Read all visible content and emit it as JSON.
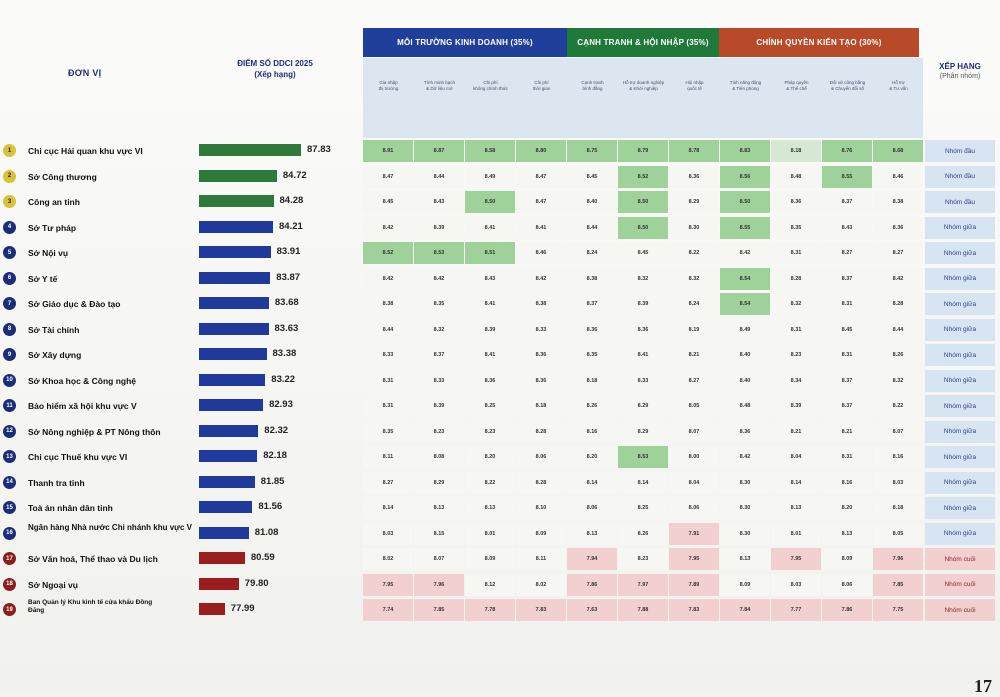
{
  "header": {
    "unit_label": "ĐƠN VỊ",
    "score_label": "ĐIỂM SỐ DDCI 2025",
    "score_sublabel": "(Xếp hạng)",
    "rank_label": "XẾP HẠNG",
    "rank_sublabel": "(Phân nhóm)",
    "groups": [
      {
        "label": "MÔI TRƯỜNG KINH DOANH (35%)",
        "color": "#1f3f9a"
      },
      {
        "label": "CẠNH TRANH & HỘI NHẬP (35%)",
        "color": "#1f7a3a"
      },
      {
        "label": "CHÍNH QUYỀN KIẾN TẠO (30%)",
        "color": "#b84a2a"
      }
    ],
    "subcols": [
      [
        "Gia nhập",
        "thị trường"
      ],
      [
        "Tính minh bạch",
        "& Dữ liệu mở"
      ],
      [
        "Chi phí",
        "không chính thức"
      ],
      [
        "Chi phí",
        "thời gian"
      ],
      [
        "Cạnh tranh",
        "bình đẳng"
      ],
      [
        "Hỗ trợ doanh nghiệp",
        "& Khởi nghiệp"
      ],
      [
        "Hội nhập",
        "quốc tế"
      ],
      [
        "Tính năng động",
        "& Tiên phong"
      ],
      [
        "Pháp quyền",
        "& Thể chế"
      ],
      [
        "Đối xử công bằng",
        "& Chuyển đổi số"
      ],
      [
        "Hỗ trợ",
        "& Tư vấn"
      ]
    ]
  },
  "colors": {
    "good": "#9ed29a",
    "mid": "#d6e8d3",
    "low": "#f2d0d0",
    "bar_green": "#2f7a3a",
    "bar_blue": "#1f3a9a",
    "bar_red": "#9a1e1e",
    "rank_bg": "#d7e4f2",
    "rank_low": "#f2d0d0"
  },
  "rows": [
    {
      "rank": "1",
      "name": "Chi cục Hải quan khu vực VI",
      "score": "87.83",
      "cells": [
        "8.91",
        "8.87",
        "8.58",
        "8.80",
        "8.75",
        "8.79",
        "8.78",
        "8.83",
        "8.18",
        "8.76",
        "8.68"
      ],
      "group": "Nhóm đầu"
    },
    {
      "rank": "2",
      "name": "Sở Công thương",
      "score": "84.72",
      "cells": [
        "8.47",
        "8.44",
        "8.49",
        "8.47",
        "8.45",
        "8.52",
        "8.36",
        "8.56",
        "8.48",
        "8.55",
        "8.46"
      ],
      "group": "Nhóm đầu"
    },
    {
      "rank": "3",
      "name": "Công an tỉnh",
      "score": "84.28",
      "cells": [
        "8.45",
        "8.43",
        "8.50",
        "8.47",
        "8.40",
        "8.50",
        "8.29",
        "8.50",
        "8.36",
        "8.37",
        "8.38"
      ],
      "group": "Nhóm đầu"
    },
    {
      "rank": "4",
      "name": "Sở Tư pháp",
      "score": "84.21",
      "cells": [
        "8.42",
        "8.39",
        "8.41",
        "8.41",
        "8.44",
        "8.50",
        "8.30",
        "8.55",
        "8.35",
        "8.43",
        "8.36"
      ],
      "group": "Nhóm giữa"
    },
    {
      "rank": "5",
      "name": "Sở Nội vụ",
      "score": "83.91",
      "cells": [
        "8.52",
        "8.53",
        "8.51",
        "8.46",
        "8.24",
        "8.45",
        "8.22",
        "8.42",
        "8.31",
        "8.27",
        "8.27"
      ],
      "group": "Nhóm giữa"
    },
    {
      "rank": "6",
      "name": "Sở Y tế",
      "score": "83.87",
      "cells": [
        "8.42",
        "8.42",
        "8.43",
        "8.42",
        "8.38",
        "8.32",
        "8.32",
        "8.54",
        "8.28",
        "8.37",
        "8.42"
      ],
      "group": "Nhóm giữa"
    },
    {
      "rank": "7",
      "name": "Sở Giáo dục & Đào tạo",
      "score": "83.68",
      "cells": [
        "8.38",
        "8.35",
        "8.41",
        "8.38",
        "8.37",
        "8.39",
        "8.24",
        "8.54",
        "8.32",
        "8.31",
        "8.28"
      ],
      "group": "Nhóm giữa"
    },
    {
      "rank": "8",
      "name": "Sở Tài chính",
      "score": "83.63",
      "cells": [
        "8.44",
        "8.32",
        "8.39",
        "8.33",
        "8.36",
        "8.36",
        "8.19",
        "8.49",
        "8.31",
        "8.45",
        "8.44"
      ],
      "group": "Nhóm giữa"
    },
    {
      "rank": "9",
      "name": "Sở Xây dựng",
      "score": "83.38",
      "cells": [
        "8.33",
        "8.37",
        "8.41",
        "8.36",
        "8.35",
        "8.41",
        "8.21",
        "8.40",
        "8.23",
        "8.31",
        "8.26"
      ],
      "group": "Nhóm giữa"
    },
    {
      "rank": "10",
      "name": "Sở Khoa học & Công nghệ",
      "score": "83.22",
      "cells": [
        "8.31",
        "8.33",
        "8.36",
        "8.36",
        "8.18",
        "8.33",
        "8.27",
        "8.40",
        "8.34",
        "8.37",
        "8.32"
      ],
      "group": "Nhóm giữa"
    },
    {
      "rank": "11",
      "name": "Bảo hiểm xã hội khu vực V",
      "score": "82.93",
      "cells": [
        "8.31",
        "8.39",
        "8.25",
        "8.18",
        "8.26",
        "8.29",
        "8.05",
        "8.48",
        "8.39",
        "8.37",
        "8.22"
      ],
      "group": "Nhóm giữa"
    },
    {
      "rank": "12",
      "name": "Sở Nông nghiệp & PT Nông thôn",
      "score": "82.32",
      "cells": [
        "8.35",
        "8.23",
        "8.23",
        "8.28",
        "8.16",
        "8.29",
        "8.07",
        "8.36",
        "8.21",
        "8.21",
        "8.07"
      ],
      "group": "Nhóm giữa"
    },
    {
      "rank": "13",
      "name": "Chi cục Thuế khu vực VI",
      "score": "82.18",
      "cells": [
        "8.11",
        "8.08",
        "8.20",
        "8.06",
        "8.20",
        "8.53",
        "8.00",
        "8.42",
        "8.04",
        "8.31",
        "8.16"
      ],
      "group": "Nhóm giữa"
    },
    {
      "rank": "14",
      "name": "Thanh tra tỉnh",
      "score": "81.85",
      "cells": [
        "8.27",
        "8.29",
        "8.22",
        "8.28",
        "8.14",
        "8.14",
        "8.04",
        "8.30",
        "8.14",
        "8.16",
        "8.03"
      ],
      "group": "Nhóm giữa"
    },
    {
      "rank": "15",
      "name": "Toà án nhân dân tỉnh",
      "score": "81.56",
      "cells": [
        "8.14",
        "8.13",
        "8.13",
        "8.10",
        "8.06",
        "8.25",
        "8.06",
        "8.30",
        "8.13",
        "8.20",
        "8.18"
      ],
      "group": "Nhóm giữa"
    },
    {
      "rank": "16",
      "name": "Ngân hàng Nhà nước Chi nhánh khu vực V",
      "score": "81.08",
      "cells": [
        "8.03",
        "8.15",
        "8.01",
        "8.09",
        "8.13",
        "8.26",
        "7.91",
        "8.30",
        "8.01",
        "8.13",
        "8.05"
      ],
      "group": "Nhóm giữa"
    },
    {
      "rank": "17",
      "name": "Sở Văn hoá, Thể thao và Du lịch",
      "score": "80.59",
      "cells": [
        "8.02",
        "8.07",
        "8.09",
        "8.11",
        "7.94",
        "8.23",
        "7.95",
        "8.13",
        "7.95",
        "8.09",
        "7.96"
      ],
      "group": "Nhóm cuối"
    },
    {
      "rank": "18",
      "name": "Sở Ngoại vụ",
      "score": "79.80",
      "cells": [
        "7.95",
        "7.96",
        "8.12",
        "8.02",
        "7.86",
        "7.97",
        "7.89",
        "8.09",
        "8.03",
        "8.06",
        "7.85"
      ],
      "group": "Nhóm cuối"
    },
    {
      "rank": "19",
      "name": "Ban Quản lý Khu kinh tế cửa khẩu Đồng Đăng",
      "score": "77.99",
      "cells": [
        "7.74",
        "7.85",
        "7.78",
        "7.83",
        "7.63",
        "7.88",
        "7.83",
        "7.84",
        "7.77",
        "7.86",
        "7.75"
      ],
      "group": "Nhóm cuối"
    }
  ],
  "page_number": "17"
}
